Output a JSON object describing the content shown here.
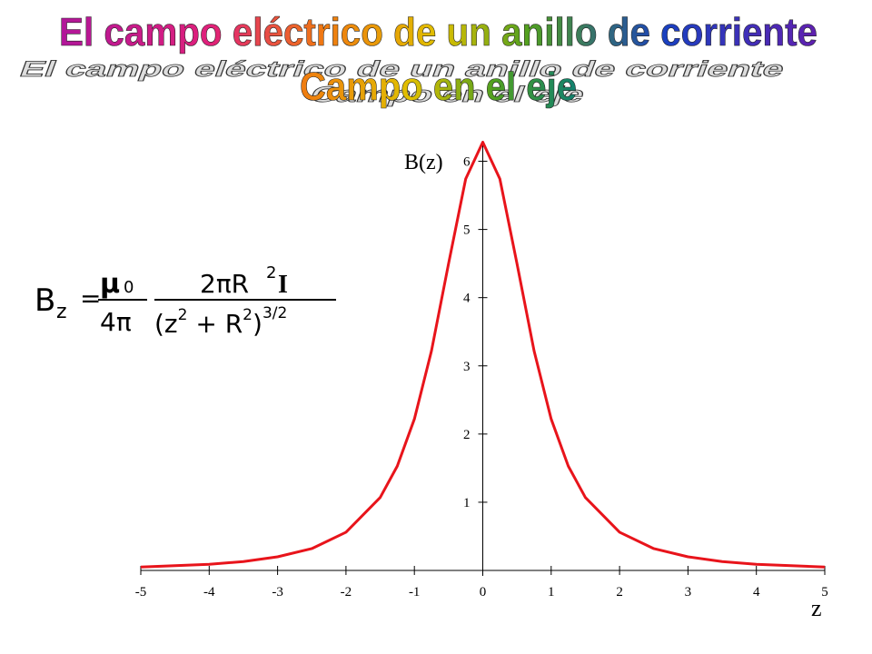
{
  "chart_data": {
    "type": "line",
    "title": "El campo eléctrico de un anillo de corriente",
    "subtitle": "Campo en el eje",
    "ylabel": "B(z)",
    "xlabel": "z",
    "equation": {
      "lhs": "B",
      "lhs_sub": "z",
      "eq": "=",
      "mu": "μ",
      "mu_sub": "0",
      "den1": "4π",
      "num": "2πR",
      "num_sup": "2",
      "num_i": "I",
      "den2a": "(z",
      "den2_sup1": "2",
      "den2b": " + R",
      "den2_sup2": "2",
      "den2c": ")",
      "den2_exp": "3/2"
    },
    "x": [
      -5,
      -4,
      -3.5,
      -3,
      -2.5,
      -2,
      -1.5,
      -1.25,
      -1,
      -0.75,
      -0.5,
      -0.25,
      0,
      0.25,
      0.5,
      0.75,
      1,
      1.25,
      1.5,
      2,
      2.5,
      3,
      3.5,
      4,
      5
    ],
    "series": [
      {
        "name": "B(z)",
        "color": "#e8141b",
        "values": [
          0.05,
          0.09,
          0.13,
          0.2,
          0.32,
          0.56,
          1.07,
          1.53,
          2.22,
          3.22,
          4.5,
          5.74,
          6.28,
          5.74,
          4.5,
          3.22,
          2.22,
          1.53,
          1.07,
          0.56,
          0.32,
          0.2,
          0.13,
          0.09,
          0.05
        ]
      }
    ],
    "xlim": [
      -5,
      5
    ],
    "ylim": [
      0,
      6.3
    ],
    "xticks": [
      -5,
      -4,
      -3,
      -2,
      -1,
      0,
      1,
      2,
      3,
      4,
      5
    ],
    "yticks": [
      1,
      2,
      3,
      4,
      5,
      6
    ]
  }
}
